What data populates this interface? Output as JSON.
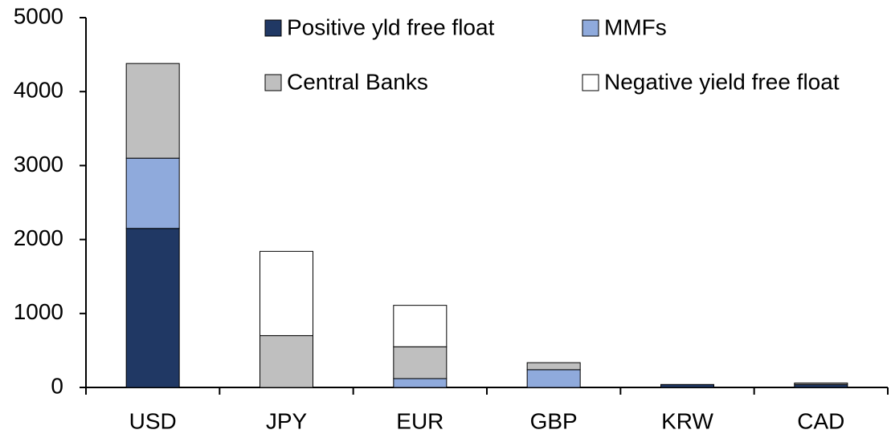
{
  "chart_data": {
    "type": "stacked_bar",
    "categories": [
      "USD",
      "JPY",
      "EUR",
      "GBP",
      "KRW",
      "CAD"
    ],
    "series": [
      {
        "name": "Positive yld free float",
        "color": "#203864",
        "values": [
          2150,
          0,
          0,
          0,
          40,
          40
        ]
      },
      {
        "name": "MMFs",
        "color": "#8faadc",
        "values": [
          950,
          0,
          120,
          240,
          0,
          0
        ]
      },
      {
        "name": "Central Banks",
        "color": "#bfbfbf",
        "values": [
          1280,
          700,
          430,
          95,
          0,
          20
        ]
      },
      {
        "name": "Negative yield free float",
        "color": "#ffffff",
        "values": [
          0,
          1140,
          560,
          0,
          0,
          0
        ]
      }
    ],
    "ylim": [
      0,
      5000
    ],
    "yticks": [
      0,
      1000,
      2000,
      3000,
      4000,
      5000
    ],
    "grid": false
  }
}
